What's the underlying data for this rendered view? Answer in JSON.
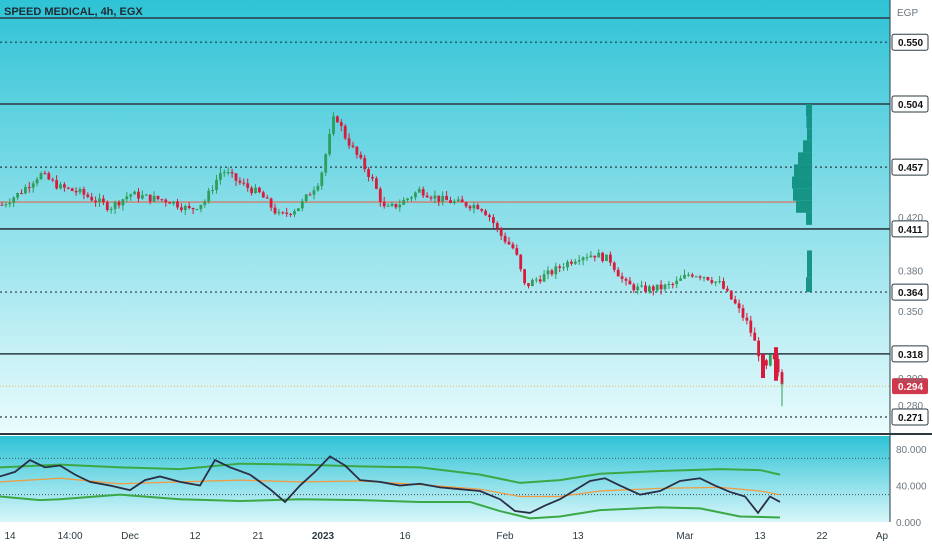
{
  "header": {
    "title": "SPEED MEDICAL, 4h, EGX",
    "currency": "EGP"
  },
  "colors": {
    "bg_top": "#2ec3d6",
    "bg_bottom": "#e9fbfd",
    "up": "#2e9e5b",
    "down": "#d81b3c",
    "level": "#2b3a42",
    "ma_line": "#e0694f",
    "osc_line": "#2a2f45",
    "band": "#3aa845",
    "osc_ma": "#f39a3c",
    "current_price_bg": "#d0394d",
    "volume_profile": "#109081"
  },
  "chart_data": [
    {
      "type": "candlestick",
      "y_axis": {
        "min": 0.26,
        "max": 0.57,
        "tick_labels": [
          "0.420",
          "0.380",
          "0.350",
          "0.300",
          "0.280"
        ]
      },
      "price_levels": [
        {
          "value": 0.55,
          "label": "0.550",
          "style": "dotted"
        },
        {
          "value": 0.504,
          "label": "0.504",
          "style": "solid"
        },
        {
          "value": 0.457,
          "label": "0.457",
          "style": "dotted"
        },
        {
          "value": 0.411,
          "label": "0.411",
          "style": "solid"
        },
        {
          "value": 0.364,
          "label": "0.364",
          "style": "dotted"
        },
        {
          "value": 0.318,
          "label": "0.318",
          "style": "solid"
        },
        {
          "value": 0.271,
          "label": "0.271",
          "style": "dotted"
        }
      ],
      "current_price": {
        "value": 0.294,
        "label": "0.294"
      },
      "moving_average_level": 0.431,
      "x_axis_labels": [
        "14",
        "14:00",
        "Dec",
        "12",
        "21",
        "2023",
        "16",
        "Feb",
        "13",
        "Mar",
        "13",
        "22",
        "Ap"
      ],
      "path_points": [
        [
          0,
          0.428
        ],
        [
          20,
          0.438
        ],
        [
          40,
          0.452
        ],
        [
          60,
          0.442
        ],
        [
          80,
          0.438
        ],
        [
          110,
          0.427
        ],
        [
          130,
          0.437
        ],
        [
          150,
          0.434
        ],
        [
          170,
          0.432
        ],
        [
          190,
          0.425
        ],
        [
          205,
          0.432
        ],
        [
          222,
          0.455
        ],
        [
          240,
          0.445
        ],
        [
          260,
          0.437
        ],
        [
          280,
          0.42
        ],
        [
          300,
          0.428
        ],
        [
          320,
          0.448
        ],
        [
          335,
          0.497
        ],
        [
          345,
          0.48
        ],
        [
          360,
          0.462
        ],
        [
          372,
          0.448
        ],
        [
          385,
          0.425
        ],
        [
          400,
          0.43
        ],
        [
          420,
          0.44
        ],
        [
          440,
          0.433
        ],
        [
          460,
          0.43
        ],
        [
          480,
          0.428
        ],
        [
          490,
          0.42
        ],
        [
          500,
          0.407
        ],
        [
          515,
          0.395
        ],
        [
          525,
          0.368
        ],
        [
          535,
          0.373
        ],
        [
          550,
          0.378
        ],
        [
          565,
          0.385
        ],
        [
          580,
          0.391
        ],
        [
          595,
          0.392
        ],
        [
          610,
          0.388
        ],
        [
          625,
          0.37
        ],
        [
          640,
          0.366
        ],
        [
          660,
          0.367
        ],
        [
          675,
          0.37
        ],
        [
          690,
          0.378
        ],
        [
          705,
          0.376
        ],
        [
          720,
          0.37
        ],
        [
          735,
          0.355
        ],
        [
          748,
          0.34
        ],
        [
          758,
          0.32
        ],
        [
          765,
          0.305
        ],
        [
          772,
          0.318
        ],
        [
          779,
          0.3
        ],
        [
          783,
          0.294
        ]
      ],
      "volume_profile": [
        {
          "price_from": 0.495,
          "price_to": 0.504,
          "weight": 0.3
        },
        {
          "price_from": 0.486,
          "price_to": 0.495,
          "weight": 0.28
        },
        {
          "price_from": 0.477,
          "price_to": 0.486,
          "weight": 0.25
        },
        {
          "price_from": 0.468,
          "price_to": 0.477,
          "weight": 0.45
        },
        {
          "price_from": 0.459,
          "price_to": 0.468,
          "weight": 0.7
        },
        {
          "price_from": 0.45,
          "price_to": 0.459,
          "weight": 0.9
        },
        {
          "price_from": 0.441,
          "price_to": 0.45,
          "weight": 1.0
        },
        {
          "price_from": 0.432,
          "price_to": 0.441,
          "weight": 0.95
        },
        {
          "price_from": 0.423,
          "price_to": 0.432,
          "weight": 0.8
        },
        {
          "price_from": 0.414,
          "price_to": 0.423,
          "weight": 0.3
        },
        {
          "price_from": 0.375,
          "price_to": 0.395,
          "weight": 0.25
        },
        {
          "price_from": 0.364,
          "price_to": 0.375,
          "weight": 0.3
        }
      ]
    },
    {
      "type": "line",
      "name": "oscillator",
      "y_axis": {
        "min": 0,
        "max": 90,
        "tick_labels": [
          "80.000",
          "40.000",
          "0.000"
        ]
      },
      "guide_levels": [
        70,
        30
      ],
      "series": [
        {
          "role": "oscillator",
          "values": [
            [
              0,
              50
            ],
            [
              15,
              55
            ],
            [
              30,
              68
            ],
            [
              45,
              60
            ],
            [
              60,
              62
            ],
            [
              75,
              52
            ],
            [
              90,
              44
            ],
            [
              110,
              40
            ],
            [
              130,
              35
            ],
            [
              145,
              46
            ],
            [
              160,
              50
            ],
            [
              180,
              44
            ],
            [
              200,
              40
            ],
            [
              215,
              68
            ],
            [
              230,
              60
            ],
            [
              250,
              52
            ],
            [
              270,
              36
            ],
            [
              285,
              22
            ],
            [
              300,
              40
            ],
            [
              315,
              55
            ],
            [
              330,
              72
            ],
            [
              345,
              62
            ],
            [
              360,
              46
            ],
            [
              380,
              44
            ],
            [
              400,
              40
            ],
            [
              420,
              42
            ],
            [
              440,
              38
            ],
            [
              460,
              36
            ],
            [
              480,
              34
            ],
            [
              500,
              25
            ],
            [
              515,
              12
            ],
            [
              530,
              10
            ],
            [
              545,
              18
            ],
            [
              560,
              25
            ],
            [
              575,
              35
            ],
            [
              590,
              45
            ],
            [
              605,
              48
            ],
            [
              620,
              40
            ],
            [
              640,
              30
            ],
            [
              660,
              34
            ],
            [
              680,
              45
            ],
            [
              700,
              48
            ],
            [
              715,
              40
            ],
            [
              730,
              33
            ],
            [
              745,
              28
            ],
            [
              758,
              10
            ],
            [
              770,
              28
            ],
            [
              780,
              22
            ]
          ]
        },
        {
          "role": "upper-band",
          "values": [
            [
              0,
              60
            ],
            [
              60,
              63
            ],
            [
              120,
              60
            ],
            [
              180,
              58
            ],
            [
              240,
              64
            ],
            [
              300,
              63
            ],
            [
              360,
              61
            ],
            [
              420,
              60
            ],
            [
              480,
              52
            ],
            [
              520,
              43
            ],
            [
              560,
              46
            ],
            [
              600,
              53
            ],
            [
              660,
              56
            ],
            [
              720,
              58
            ],
            [
              760,
              57
            ],
            [
              780,
              52
            ]
          ]
        },
        {
          "role": "lower-band",
          "values": [
            [
              0,
              28
            ],
            [
              40,
              24
            ],
            [
              60,
              25
            ],
            [
              120,
              30
            ],
            [
              180,
              25
            ],
            [
              240,
              23
            ],
            [
              300,
              25
            ],
            [
              360,
              24
            ],
            [
              420,
              22
            ],
            [
              470,
              22
            ],
            [
              500,
              12
            ],
            [
              530,
              4
            ],
            [
              560,
              6
            ],
            [
              600,
              13
            ],
            [
              660,
              16
            ],
            [
              700,
              15
            ],
            [
              740,
              6
            ],
            [
              780,
              5
            ]
          ]
        },
        {
          "role": "signal",
          "values": [
            [
              0,
              44
            ],
            [
              60,
              48
            ],
            [
              120,
              42
            ],
            [
              180,
              44
            ],
            [
              240,
              46
            ],
            [
              300,
              44
            ],
            [
              360,
              45
            ],
            [
              420,
              41
            ],
            [
              480,
              36
            ],
            [
              520,
              28
            ],
            [
              560,
              28
            ],
            [
              600,
              34
            ],
            [
              660,
              37
            ],
            [
              720,
              38
            ],
            [
              760,
              34
            ],
            [
              780,
              30
            ]
          ]
        }
      ]
    }
  ]
}
